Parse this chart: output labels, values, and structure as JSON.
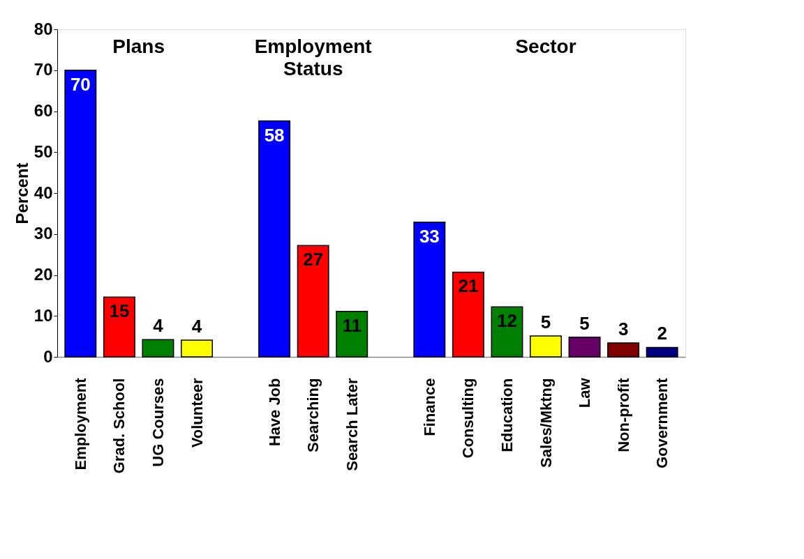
{
  "chart_data": {
    "type": "bar",
    "ylabel": "Percent",
    "categories": [
      "Employment",
      "Grad. School",
      "UG Courses",
      "Volunteer",
      null,
      "Have Job",
      "Searching",
      "Search Later",
      null,
      "Finance",
      "Consulting",
      "Education",
      "Sales/Mktng",
      "Law",
      "Non-profit",
      "Government"
    ],
    "values": [
      70,
      14.6,
      4.2,
      4.1,
      null,
      57.6,
      27.2,
      11.1,
      null,
      32.9,
      20.7,
      12.2,
      5.1,
      4.8,
      3.4,
      2.3
    ],
    "value_labels": [
      "70",
      "15",
      "4",
      "4",
      null,
      "58",
      "27",
      "11",
      null,
      "33",
      "21",
      "12",
      "5",
      "5",
      "3",
      "2"
    ],
    "colors": [
      "#0000ff",
      "#ff0000",
      "#008000",
      "#ffff00",
      null,
      "#0000ff",
      "#ff0000",
      "#008000",
      null,
      "#0000ff",
      "#ff0000",
      "#008000",
      "#ffff00",
      "#660066",
      "#800000",
      "#000080"
    ],
    "annotations": [
      "Plans",
      "Employment Status",
      "Sector"
    ],
    "ylim": [
      0,
      80
    ],
    "yticks": [
      0,
      10,
      20,
      30,
      40,
      50,
      60,
      70,
      80
    ],
    "grid": false
  }
}
